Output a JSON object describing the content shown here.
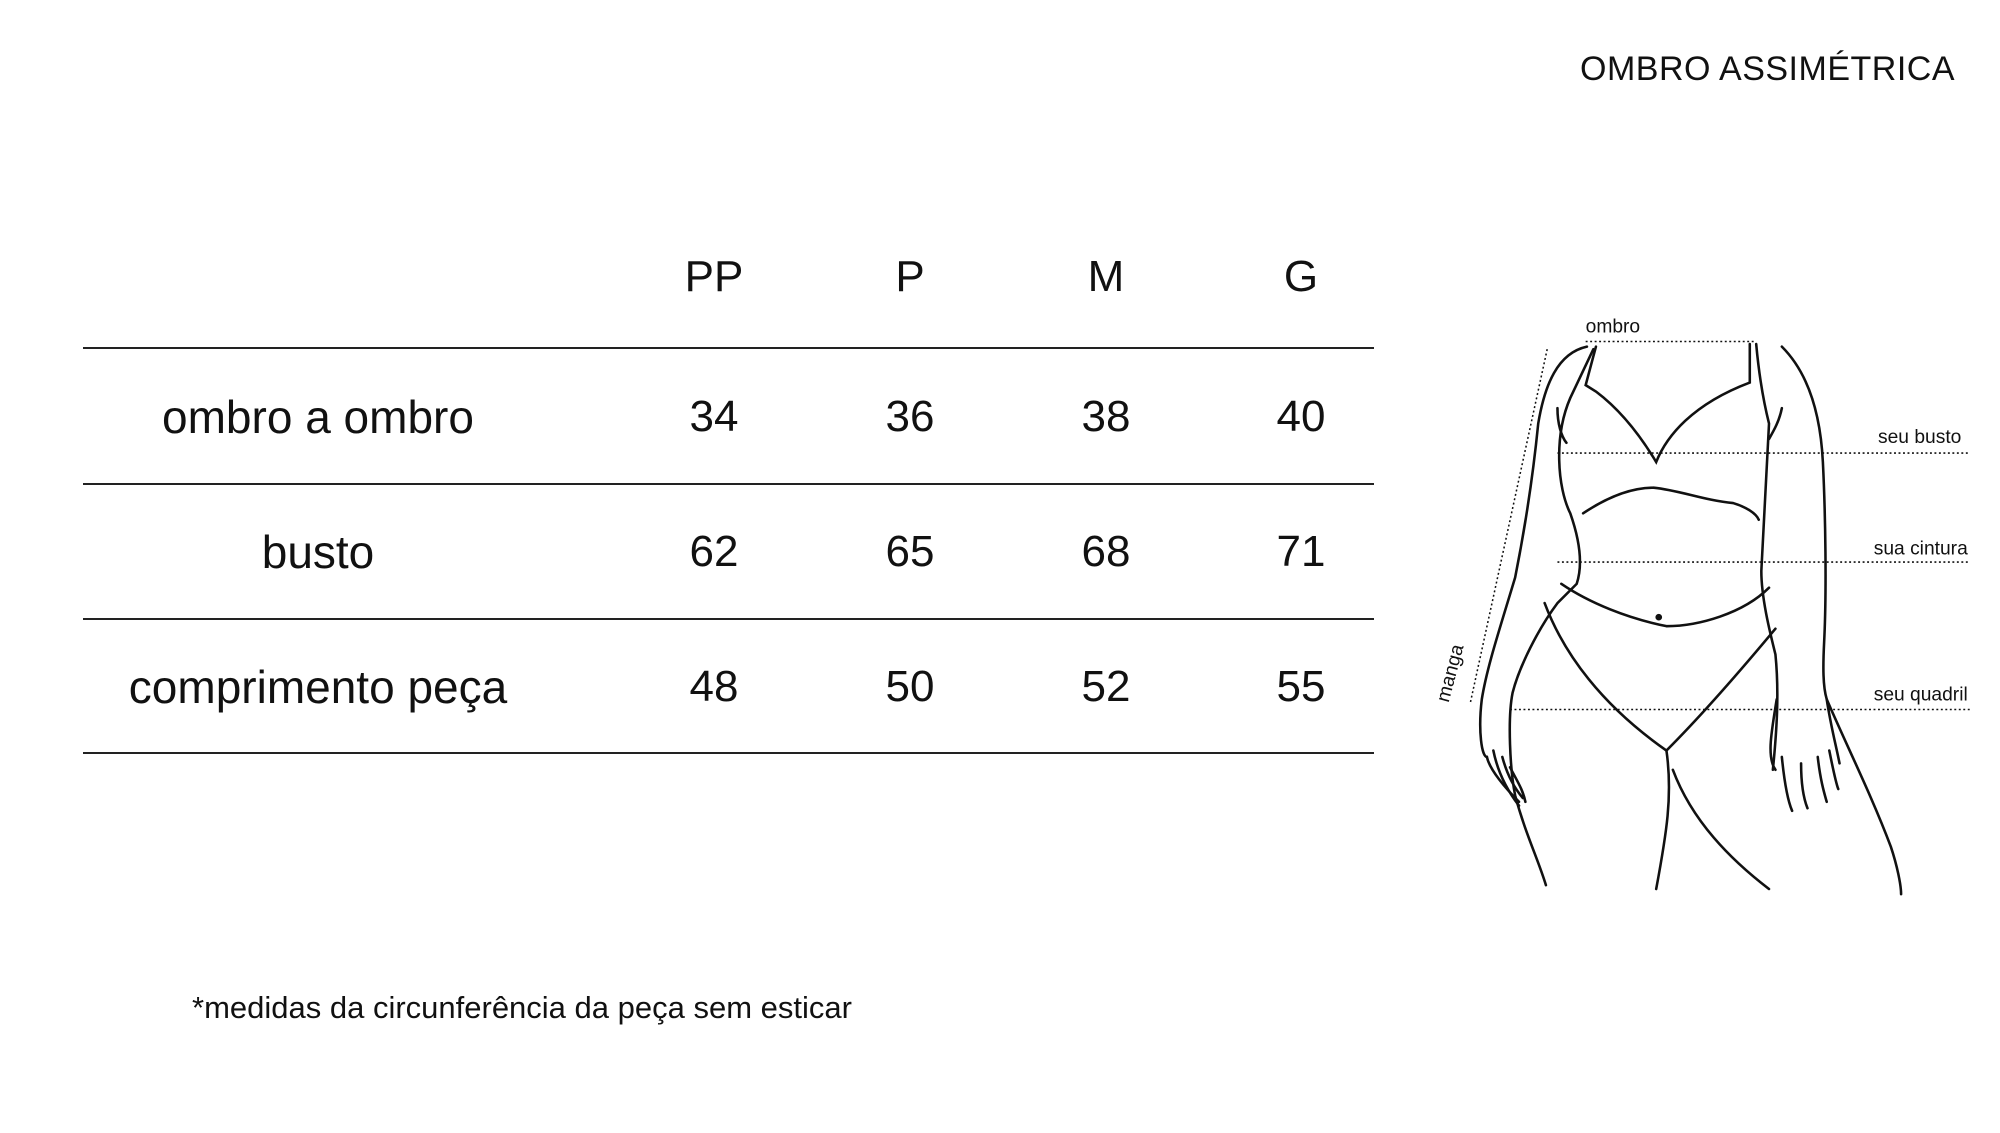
{
  "title": "OMBRO ASSIMÉTRICA",
  "table": {
    "columns": [
      "PP",
      "P",
      "M",
      "G"
    ],
    "rows": [
      {
        "label": "ombro a ombro",
        "values": [
          "34",
          "36",
          "38",
          "40"
        ]
      },
      {
        "label": "busto",
        "values": [
          "62",
          "65",
          "68",
          "71"
        ]
      },
      {
        "label": "comprimento peça",
        "values": [
          "48",
          "50",
          "52",
          "55"
        ]
      }
    ]
  },
  "footnote": "*medidas da circunferência da peça sem esticar",
  "figure": {
    "labels": {
      "ombro": "ombro",
      "busto": "seu busto",
      "cintura": "sua cintura",
      "quadril": "seu quadril",
      "manga": "manga"
    }
  }
}
